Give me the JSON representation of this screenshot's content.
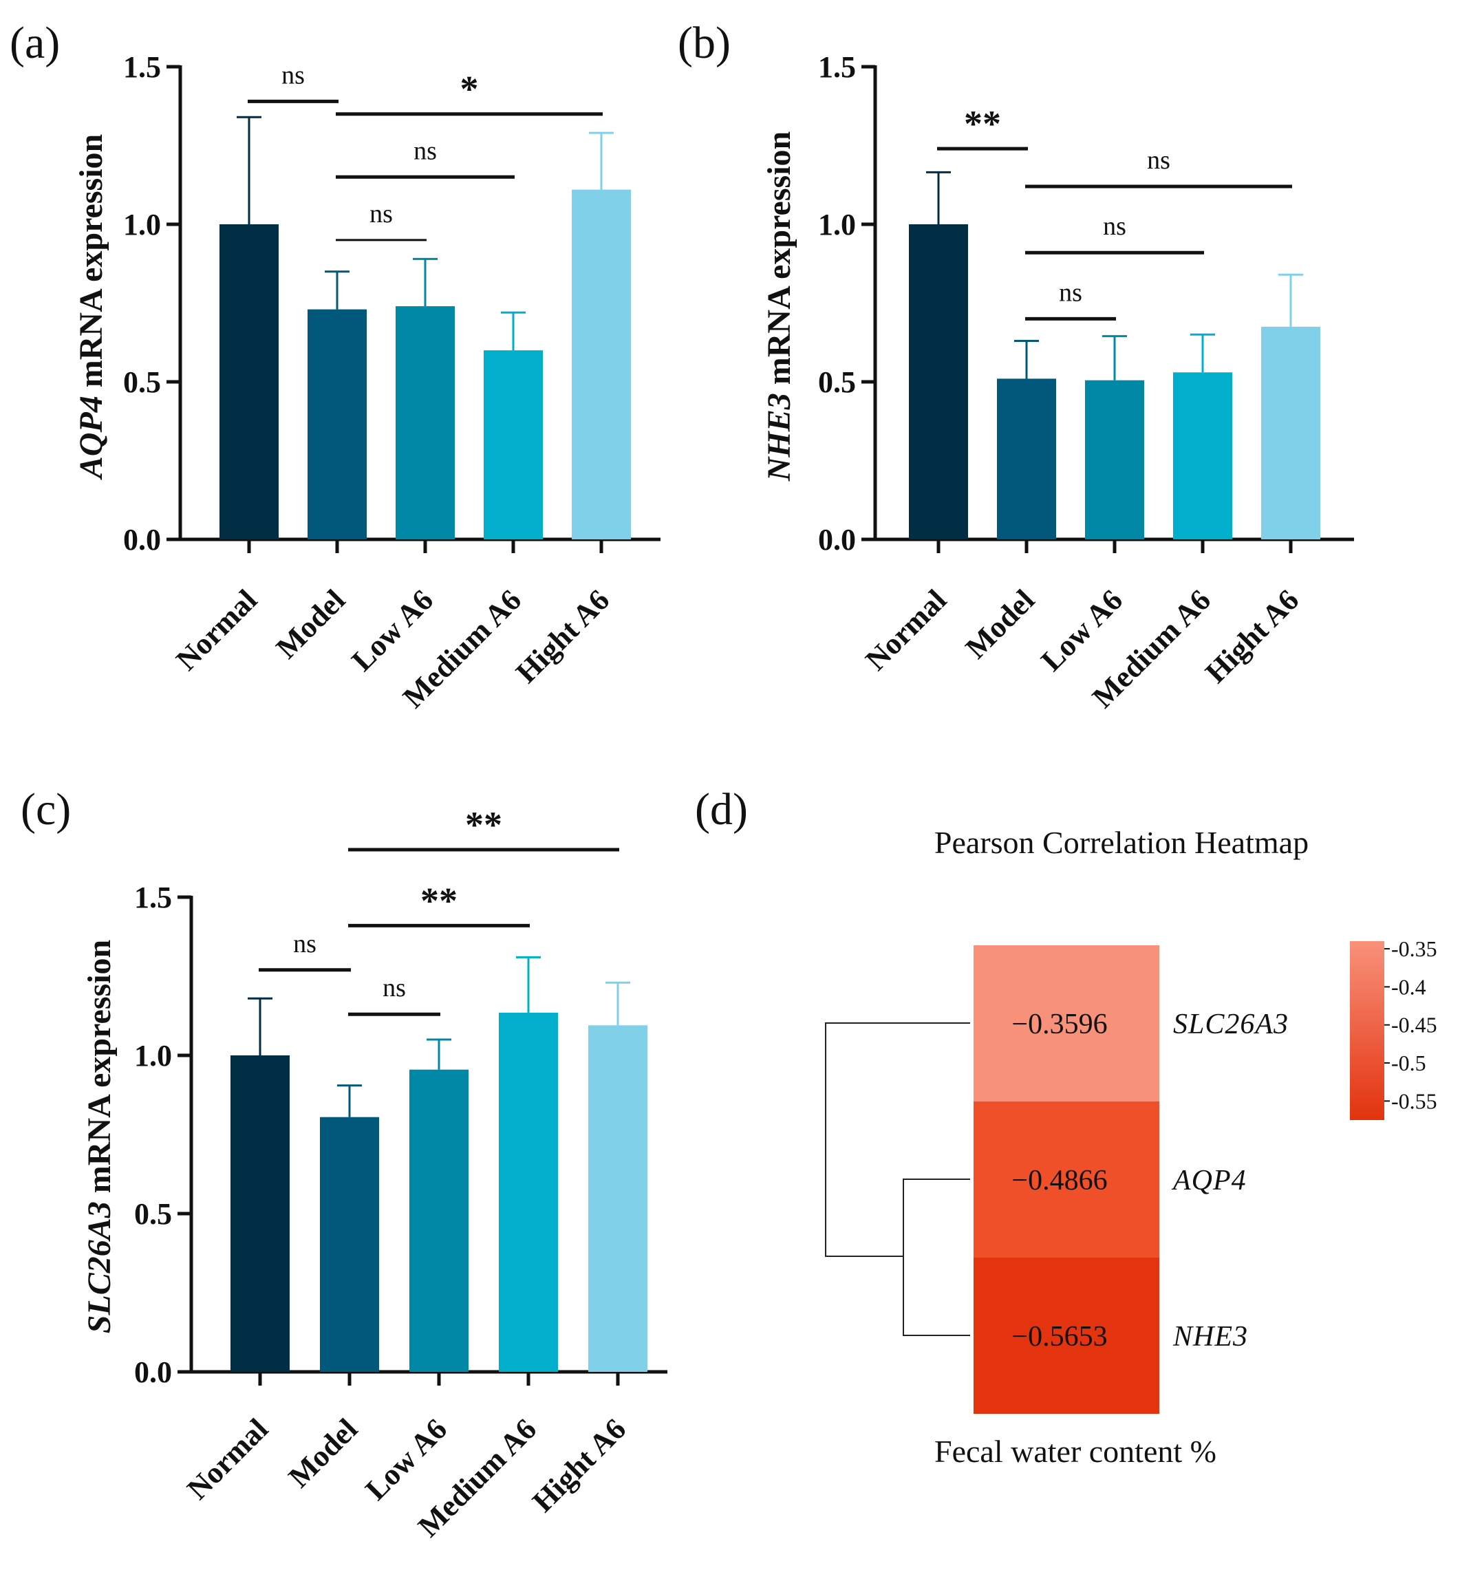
{
  "chart_data": [
    {
      "panel": "(a)",
      "type": "bar",
      "categories": [
        "Normal",
        "Model",
        "Low A6",
        "Medium A6",
        "Hight A6"
      ],
      "values": [
        1.0,
        0.73,
        0.74,
        0.6,
        1.11
      ],
      "errors": [
        0.34,
        0.12,
        0.15,
        0.12,
        0.18
      ],
      "colors": [
        "#012D45",
        "#02587A",
        "#0088A6",
        "#01AECC",
        "#7FD0E8"
      ],
      "ylabel_gene": "AQP4",
      "ylabel_rest": " mRNA expression",
      "ylim": [
        0,
        1.5
      ],
      "yticks": [
        "0.0",
        "0.5",
        "1.0",
        "1.5"
      ],
      "significance": [
        {
          "from": 0,
          "to": 1,
          "label": "ns",
          "level": 1.39
        },
        {
          "from": 1,
          "to": 4,
          "label": "*",
          "level": 1.35
        },
        {
          "from": 1,
          "to": 3,
          "label": "ns",
          "level": 1.15
        },
        {
          "from": 1,
          "to": 2,
          "label": "ns",
          "level": 0.95
        }
      ]
    },
    {
      "panel": "(b)",
      "type": "bar",
      "categories": [
        "Normal",
        "Model",
        "Low A6",
        "Medium A6",
        "Hight A6"
      ],
      "values": [
        1.0,
        0.51,
        0.505,
        0.53,
        0.675
      ],
      "errors": [
        0.165,
        0.12,
        0.14,
        0.12,
        0.165
      ],
      "colors": [
        "#012D45",
        "#02587A",
        "#0088A6",
        "#01AECC",
        "#7FD0E8"
      ],
      "ylabel_gene": "NHE3",
      "ylabel_rest": " mRNA expression",
      "ylim": [
        0,
        1.5
      ],
      "yticks": [
        "0.0",
        "0.5",
        "1.0",
        "1.5"
      ],
      "significance": [
        {
          "from": 0,
          "to": 1,
          "label": "**",
          "level": 1.24
        },
        {
          "from": 1,
          "to": 4,
          "label": "ns",
          "level": 1.12
        },
        {
          "from": 1,
          "to": 3,
          "label": "ns",
          "level": 0.91
        },
        {
          "from": 1,
          "to": 2,
          "label": "ns",
          "level": 0.7
        }
      ]
    },
    {
      "panel": "(c)",
      "type": "bar",
      "categories": [
        "Normal",
        "Model",
        "Low A6",
        "Medium A6",
        "Hight A6"
      ],
      "values": [
        1.0,
        0.805,
        0.955,
        1.135,
        1.095
      ],
      "errors": [
        0.18,
        0.1,
        0.095,
        0.175,
        0.135
      ],
      "colors": [
        "#012D45",
        "#02587A",
        "#0088A6",
        "#01AECC",
        "#7FD0E8"
      ],
      "ylabel_gene": "SLC26A3",
      "ylabel_rest": " mRNA expression",
      "ylim": [
        0,
        1.5
      ],
      "yticks": [
        "0.0",
        "0.5",
        "1.0",
        "1.5"
      ],
      "significance": [
        {
          "from": 0,
          "to": 1,
          "label": "ns",
          "level": 1.27
        },
        {
          "from": 1,
          "to": 4,
          "label": "**",
          "level": 1.65
        },
        {
          "from": 1,
          "to": 3,
          "label": "**",
          "level": 1.41
        },
        {
          "from": 1,
          "to": 2,
          "label": "ns",
          "level": 1.13
        }
      ]
    },
    {
      "panel": "(d)",
      "type": "heatmap",
      "title": "Pearson Correlation Heatmap",
      "xlabel": "Fecal water content %",
      "rows": [
        "SLC26A3",
        "AQP4",
        "NHE3"
      ],
      "values": [
        -0.3596,
        -0.4866,
        -0.5653
      ],
      "value_labels": [
        "−0.3596",
        "−0.4866",
        "−0.5653"
      ],
      "cell_colors": [
        "#F8917A",
        "#EF5029",
        "#E3330F"
      ],
      "colorbar": {
        "range": [
          -0.575,
          -0.34
        ],
        "ticks": [
          -0.35,
          -0.4,
          -0.45,
          -0.5,
          -0.55
        ],
        "tick_labels": [
          "-0.35",
          "-0.4",
          "-0.45",
          "-0.5",
          "-0.55"
        ],
        "color_top": "#F8917A",
        "color_bottom": "#E3330F"
      },
      "dendrogram": "((AQP4, NHE3), SLC26A3)"
    }
  ]
}
